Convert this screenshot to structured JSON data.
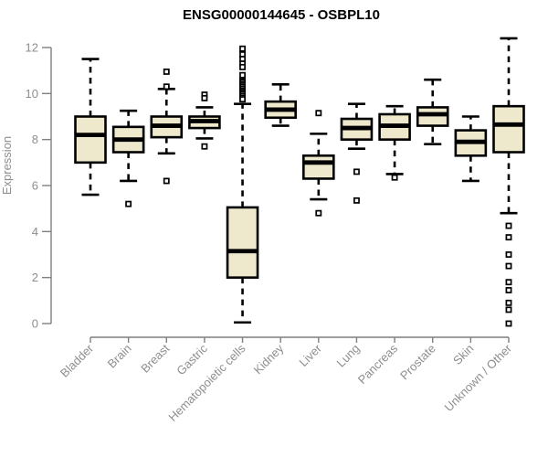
{
  "chart_data": {
    "type": "boxplot",
    "title": "ENSG00000144645 - OSBPL10",
    "ylabel": "Expression",
    "xlabel": "",
    "ylim": [
      0,
      12
    ],
    "yticks": [
      0,
      2,
      4,
      6,
      8,
      10,
      12
    ],
    "grid": false,
    "legend": "none",
    "colors": {
      "box_fill": "#EEE8CD",
      "box_stroke": "#000000",
      "median": "#000000",
      "axis_line": "#7f7f7f",
      "axis_text": "#8e8e8e",
      "title_text": "#000000",
      "background": "#ffffff"
    },
    "categories": [
      "Bladder",
      "Brain",
      "Breast",
      "Gastric",
      "Hematopoietic cells",
      "Kidney",
      "Liver",
      "Lung",
      "Pancreas",
      "Prostate",
      "Skin",
      "Unknown / Other"
    ],
    "series": [
      {
        "name": "Bladder",
        "median": 8.2,
        "q1": 7.0,
        "q3": 9.0,
        "whisker_low": 5.6,
        "whisker_high": 11.5,
        "outliers": []
      },
      {
        "name": "Brain",
        "median": 8.0,
        "q1": 7.45,
        "q3": 8.55,
        "whisker_low": 6.2,
        "whisker_high": 9.25,
        "outliers": [
          5.2
        ]
      },
      {
        "name": "Breast",
        "median": 8.6,
        "q1": 8.1,
        "q3": 9.0,
        "whisker_low": 7.4,
        "whisker_high": 10.2,
        "outliers": [
          10.95,
          10.3,
          6.2
        ]
      },
      {
        "name": "Gastric",
        "median": 8.8,
        "q1": 8.5,
        "q3": 9.0,
        "whisker_low": 8.05,
        "whisker_high": 9.4,
        "outliers": [
          9.95,
          9.8,
          7.7
        ]
      },
      {
        "name": "Hematopoietic cells",
        "median": 3.15,
        "q1": 2.0,
        "q3": 5.05,
        "whisker_low": 0.05,
        "whisker_high": 9.55,
        "outliers": [
          11.95,
          11.7,
          11.5,
          11.3,
          11.15,
          10.8,
          10.55,
          10.5,
          10.42,
          10.35,
          10.28,
          10.2,
          10.12,
          10.05,
          9.98,
          9.9,
          9.82,
          9.75
        ]
      },
      {
        "name": "Kidney",
        "median": 9.3,
        "q1": 8.95,
        "q3": 9.65,
        "whisker_low": 8.6,
        "whisker_high": 10.4,
        "outliers": []
      },
      {
        "name": "Liver",
        "median": 7.0,
        "q1": 6.3,
        "q3": 7.3,
        "whisker_low": 5.4,
        "whisker_high": 8.25,
        "outliers": [
          9.15,
          4.8
        ]
      },
      {
        "name": "Lung",
        "median": 8.5,
        "q1": 8.0,
        "q3": 8.9,
        "whisker_low": 7.6,
        "whisker_high": 9.55,
        "outliers": [
          6.6,
          5.35
        ]
      },
      {
        "name": "Pancreas",
        "median": 8.6,
        "q1": 8.0,
        "q3": 9.1,
        "whisker_low": 6.5,
        "whisker_high": 9.45,
        "outliers": [
          6.35
        ]
      },
      {
        "name": "Prostate",
        "median": 9.1,
        "q1": 8.6,
        "q3": 9.4,
        "whisker_low": 7.8,
        "whisker_high": 10.6,
        "outliers": []
      },
      {
        "name": "Skin",
        "median": 7.9,
        "q1": 7.3,
        "q3": 8.4,
        "whisker_low": 6.2,
        "whisker_high": 9.0,
        "outliers": []
      },
      {
        "name": "Unknown / Other",
        "median": 8.65,
        "q1": 7.45,
        "q3": 9.45,
        "whisker_low": 4.8,
        "whisker_high": 12.4,
        "outliers": [
          4.25,
          3.75,
          3.0,
          2.5,
          1.8,
          1.45,
          0.9,
          0.6,
          0.0
        ]
      }
    ]
  }
}
